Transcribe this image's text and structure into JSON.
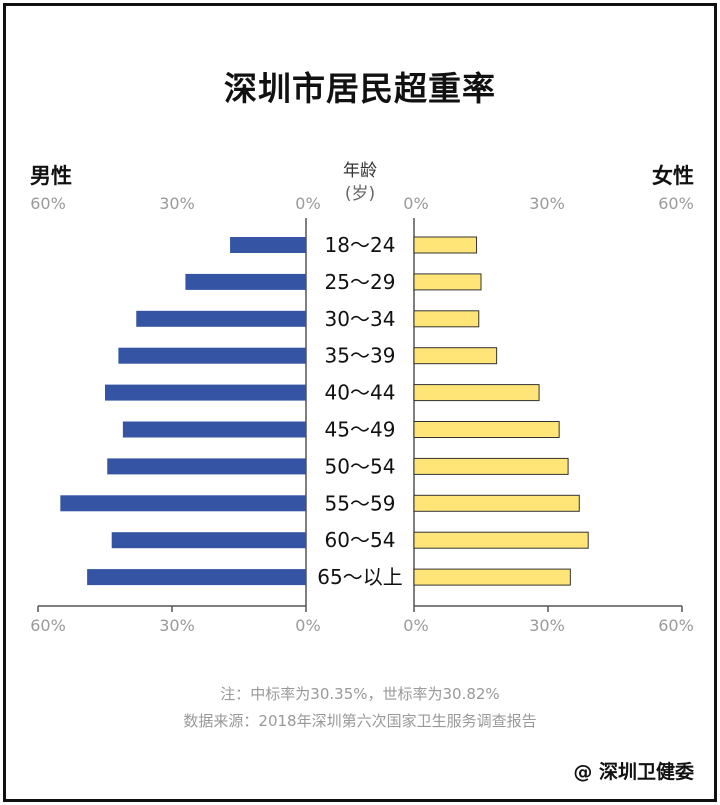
{
  "title": "深圳市居民超重率",
  "male_label": "男性",
  "female_label": "女性",
  "age_header": "年龄",
  "age_unit": "(岁)",
  "note": "注：中标率为30.35%，世标率为30.82%",
  "source": "数据来源：2018年深圳第六次国家卫生服务调查报告",
  "credit": "@ 深圳卫健委",
  "colors": {
    "male": "#3554a4",
    "female": "#ffe577",
    "female_border": "#333333"
  },
  "chart_data": {
    "type": "bar",
    "subtype": "population-pyramid",
    "categories": [
      "18～24",
      "25～29",
      "30～34",
      "35～39",
      "40～44",
      "45～49",
      "50～54",
      "55～59",
      "60～54",
      "65～以上"
    ],
    "series": [
      {
        "name": "男性",
        "values": [
          17,
          27,
          38,
          42,
          45,
          41,
          44.5,
          55,
          43.5,
          49
        ]
      },
      {
        "name": "女性",
        "values": [
          14,
          15,
          14.5,
          18.5,
          28,
          32.5,
          34.5,
          37,
          39,
          35
        ]
      }
    ],
    "xlim": [
      0,
      60
    ],
    "ticks": [
      "60%",
      "30%",
      "0%"
    ],
    "ticks_right": [
      "0%",
      "30%",
      "60%"
    ],
    "grid": false
  }
}
